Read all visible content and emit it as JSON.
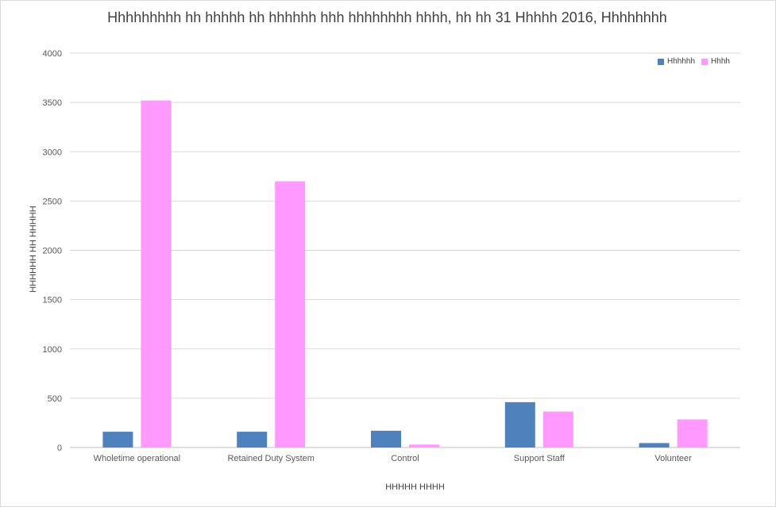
{
  "chart_data": {
    "type": "bar",
    "title": "Hhhhhhhhh hh hhhhh hh hhhhhh hhh hhhhhhhh hhhh, hh hh 31 Hhhhh 2016, Hhhhhhhh",
    "xlabel": "HHHHH HHHH",
    "ylabel": "HHHHHH HH HHHHH",
    "categories": [
      "Wholetime operational",
      "Retained Duty System",
      "Control",
      "Support Staff",
      "Volunteer"
    ],
    "series": [
      {
        "name": "Hhhhhh",
        "color": "#4f81bd",
        "values": [
          160,
          160,
          170,
          460,
          45
        ]
      },
      {
        "name": "Hhhh",
        "color": "#ff99ff",
        "values": [
          3520,
          2700,
          30,
          365,
          285
        ]
      }
    ],
    "ylim": [
      0,
      4000
    ],
    "yticks": [
      "0",
      "500",
      "1000",
      "1500",
      "2000",
      "2500",
      "3000",
      "3500",
      "4000"
    ],
    "grid": true,
    "legend_position": "top-right"
  }
}
